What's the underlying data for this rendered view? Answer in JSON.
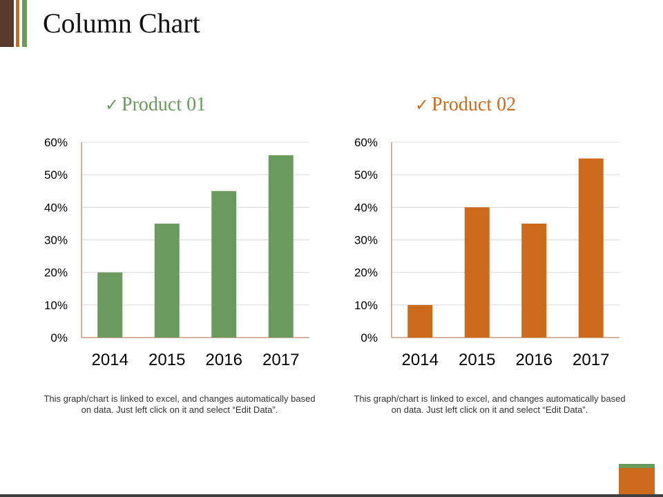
{
  "title": "Column Chart",
  "note_text": "This graph/chart is linked to excel, and changes automatically based on data. Just left click on it and select “Edit Data”.",
  "colors": {
    "product1": "#6a9a5d",
    "product2": "#cc6a1c"
  },
  "chart_data": [
    {
      "type": "bar",
      "title": "Product 01",
      "categories": [
        "2014",
        "2015",
        "2016",
        "2017"
      ],
      "values": [
        20,
        35,
        45,
        56
      ],
      "y_ticks": [
        "0%",
        "10%",
        "20%",
        "30%",
        "40%",
        "50%",
        "60%"
      ],
      "ylim": [
        0,
        60
      ],
      "grid": true,
      "color": "#6a9a5d"
    },
    {
      "type": "bar",
      "title": "Product 02",
      "categories": [
        "2014",
        "2015",
        "2016",
        "2017"
      ],
      "values": [
        10,
        40,
        35,
        55
      ],
      "y_ticks": [
        "0%",
        "10%",
        "20%",
        "30%",
        "40%",
        "50%",
        "60%"
      ],
      "ylim": [
        0,
        60
      ],
      "grid": true,
      "color": "#cc6a1c"
    }
  ]
}
